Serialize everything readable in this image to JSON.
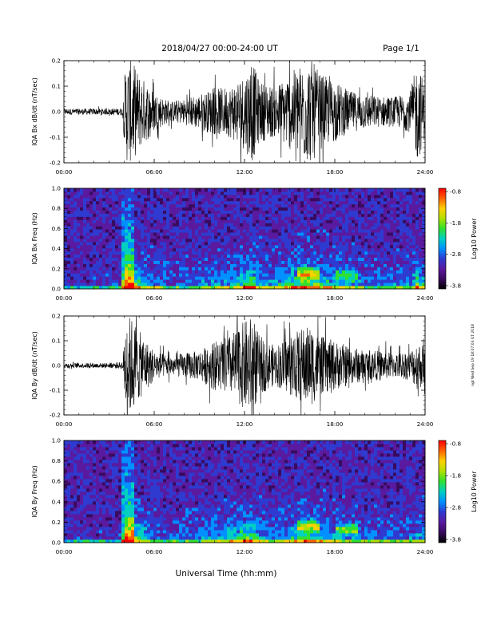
{
  "header": {
    "title": "2018/04/27  00:00-24:00 UT",
    "page": "Page 1/1"
  },
  "footer": {
    "xlabel": "Universal Time (hh:mm)",
    "stamp": "ngt Wed Sep 19 18:07:03 UT 2018"
  },
  "colors": {
    "cmap": [
      "#000000",
      "#3a0a5e",
      "#5a1aa0",
      "#2e3ad0",
      "#0090ff",
      "#00d0c0",
      "#30e030",
      "#b0e000",
      "#ffd000",
      "#ff6000",
      "#ff0000"
    ]
  },
  "chart_data": [
    {
      "type": "line",
      "ylabel": "IQA Bx dB/dt (nT/sec)",
      "yticks": [
        "0.2",
        "0.1",
        "0.0",
        "-0.1",
        "-0.2"
      ],
      "ylim": [
        -0.2,
        0.2
      ],
      "xticks": [
        "00:00",
        "06:00",
        "12:00",
        "18:00",
        "24:00"
      ],
      "xlim_hours": [
        0,
        24
      ],
      "envelope": {
        "hours": [
          0,
          3,
          3.9,
          4.1,
          4.5,
          5,
          6,
          7,
          8,
          9,
          10,
          11,
          12,
          12.5,
          13,
          14,
          15,
          16,
          16.5,
          17,
          18,
          19,
          20,
          21,
          22,
          23,
          23.5,
          24
        ],
        "amplitude": [
          0.012,
          0.012,
          0.015,
          0.2,
          0.2,
          0.15,
          0.08,
          0.04,
          0.05,
          0.07,
          0.09,
          0.1,
          0.15,
          0.2,
          0.12,
          0.1,
          0.15,
          0.2,
          0.2,
          0.15,
          0.12,
          0.08,
          0.07,
          0.06,
          0.06,
          0.08,
          0.2,
          0.1
        ]
      }
    },
    {
      "type": "heatmap",
      "ylabel": "IQA Bx Freq (Hz)",
      "yticks": [
        "1.0",
        "0.8",
        "0.6",
        "0.4",
        "0.2",
        "0.0"
      ],
      "ylim": [
        0,
        1.0
      ],
      "xticks": [
        "00:00",
        "06:00",
        "12:00",
        "18:00",
        "24:00"
      ],
      "colorbar_ticks": [
        "-0.8",
        "-1.8",
        "-2.8",
        "-3.8"
      ],
      "colorbar_label": "Log10 Power",
      "clim": [
        -3.8,
        -0.8
      ]
    },
    {
      "type": "line",
      "ylabel": "IQA By dB/dt (nT/sec)",
      "yticks": [
        "0.2",
        "0.1",
        "0.0",
        "-0.1",
        "-0.2"
      ],
      "ylim": [
        -0.2,
        0.2
      ],
      "xticks": [
        "00:00",
        "06:00",
        "12:00",
        "18:00",
        "24:00"
      ],
      "xlim_hours": [
        0,
        24
      ],
      "envelope": {
        "hours": [
          0,
          3,
          3.9,
          4.1,
          4.5,
          5,
          6,
          7,
          8,
          9,
          10,
          11,
          12,
          12.5,
          13,
          14,
          15,
          16,
          16.5,
          17,
          18,
          19,
          20,
          21,
          22,
          23,
          23.5,
          24
        ],
        "amplitude": [
          0.01,
          0.01,
          0.015,
          0.2,
          0.2,
          0.14,
          0.06,
          0.04,
          0.05,
          0.06,
          0.1,
          0.12,
          0.18,
          0.2,
          0.12,
          0.08,
          0.12,
          0.16,
          0.16,
          0.12,
          0.1,
          0.08,
          0.06,
          0.06,
          0.05,
          0.06,
          0.1,
          0.08
        ]
      }
    },
    {
      "type": "heatmap",
      "ylabel": "IQA By Freq (Hz)",
      "yticks": [
        "1.0",
        "0.8",
        "0.6",
        "0.4",
        "0.2",
        "0.0"
      ],
      "ylim": [
        0,
        1.0
      ],
      "xticks": [
        "00:00",
        "06:00",
        "12:00",
        "18:00",
        "24:00"
      ],
      "colorbar_ticks": [
        "-0.8",
        "-1.8",
        "-2.8",
        "-3.8"
      ],
      "colorbar_label": "Log10 Power",
      "clim": [
        -3.8,
        -0.8
      ]
    }
  ]
}
